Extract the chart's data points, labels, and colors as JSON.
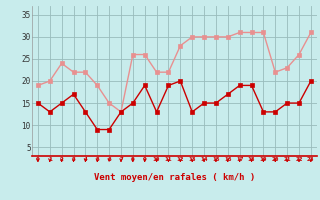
{
  "x": [
    0,
    1,
    2,
    3,
    4,
    5,
    6,
    7,
    8,
    9,
    10,
    11,
    12,
    13,
    14,
    15,
    16,
    17,
    18,
    19,
    20,
    21,
    22,
    23
  ],
  "vent_moyen": [
    15,
    13,
    15,
    17,
    13,
    9,
    9,
    13,
    15,
    19,
    13,
    19,
    20,
    13,
    15,
    15,
    17,
    19,
    19,
    13,
    13,
    15,
    15,
    20
  ],
  "en_rafales": [
    19,
    20,
    24,
    22,
    22,
    19,
    15,
    13,
    26,
    26,
    22,
    22,
    28,
    30,
    30,
    30,
    30,
    31,
    31,
    31,
    22,
    23,
    26,
    31
  ],
  "color_moyen": "#cc0000",
  "color_rafales": "#e89090",
  "bg_color": "#c8ecec",
  "grid_color": "#99bbbb",
  "xlabel": "Vent moyen/en rafales ( km/h )",
  "xlabel_color": "#cc0000",
  "yticks": [
    5,
    10,
    15,
    20,
    25,
    30,
    35
  ],
  "ylim": [
    3,
    37
  ],
  "xlim": [
    -0.5,
    23.5
  ],
  "marker": "s",
  "markersize": 2.5,
  "linewidth": 1.0
}
